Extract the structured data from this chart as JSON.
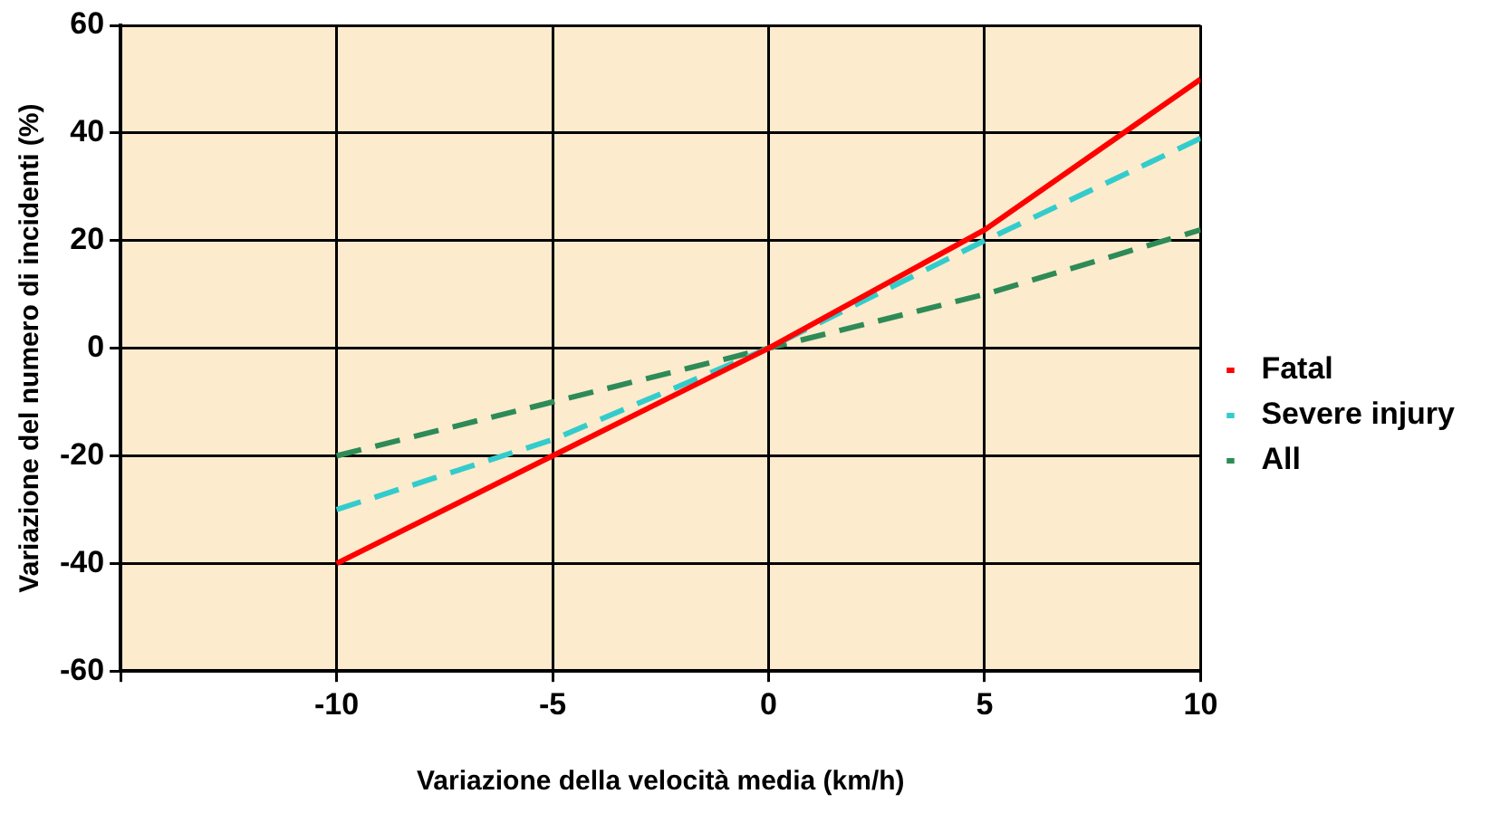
{
  "chart_data": {
    "type": "line",
    "xlabel": "Variazione della velocità media (km/h)",
    "ylabel": "Variazione del numero di incidenti (%)",
    "x": [
      -10,
      -5,
      0,
      5,
      10
    ],
    "series": [
      {
        "name": "Fatal",
        "color": "#ff0000",
        "line_style": "solid",
        "values": [
          -40,
          -20,
          0,
          22,
          50
        ]
      },
      {
        "name": "Severe injury",
        "color": "#33cccc",
        "line_style": "dashed",
        "values": [
          -30,
          -17,
          0,
          20,
          39
        ]
      },
      {
        "name": "All",
        "color": "#2e8b57",
        "line_style": "dashed",
        "values": [
          -20,
          -10,
          0,
          10,
          22
        ]
      }
    ],
    "xlim": [
      -15,
      10
    ],
    "xticks": [
      {
        "value": -15,
        "label": null
      },
      -10,
      -5,
      0,
      5,
      10
    ],
    "ylim": [
      -60,
      60
    ],
    "yticks": [
      -60,
      -40,
      -20,
      0,
      20,
      40,
      60
    ],
    "grid": true,
    "legend": "right",
    "marker": "none"
  }
}
